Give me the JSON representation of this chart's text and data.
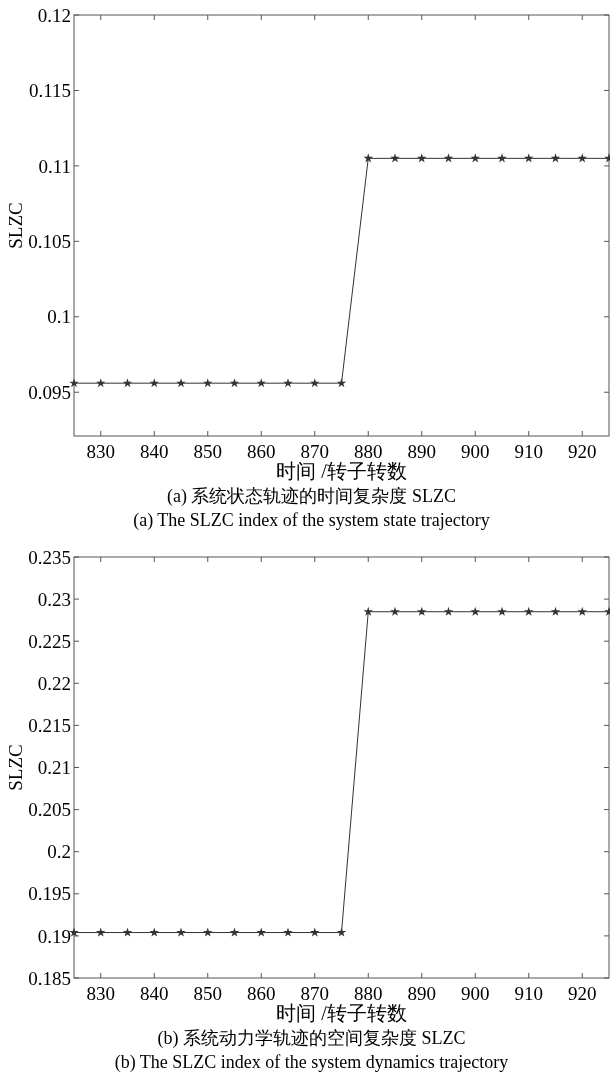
{
  "chart_data": [
    {
      "type": "line",
      "title": "(a) 系统状态轨迹的时间复杂度 SLZC",
      "subtitle": "(a) The SLZC index of the system state trajectory",
      "xlabel": "时间 /转子转数",
      "ylabel": "SLZC",
      "x": [
        825,
        830,
        835,
        840,
        845,
        850,
        855,
        860,
        865,
        870,
        875,
        880,
        885,
        890,
        895,
        900,
        905,
        910,
        915,
        920,
        925
      ],
      "series": [
        {
          "color": "#333333",
          "values": [
            0.0956,
            0.0956,
            0.0956,
            0.0956,
            0.0956,
            0.0956,
            0.0956,
            0.0956,
            0.0956,
            0.0956,
            0.0956,
            0.1105,
            0.1105,
            0.1105,
            0.1105,
            0.1105,
            0.1105,
            0.1105,
            0.1105,
            0.1105,
            0.1105
          ]
        }
      ],
      "xlim": [
        825,
        925
      ],
      "ylim": [
        0.0921,
        0.12
      ],
      "xticks": [
        830,
        840,
        850,
        860,
        870,
        880,
        890,
        900,
        910,
        920
      ],
      "yticks": [
        0.095,
        0.1,
        0.105,
        0.11,
        0.115,
        0.12
      ],
      "marker": "star",
      "line_style": "solid",
      "grid": false
    },
    {
      "type": "line",
      "title": "(b) 系统动力学轨迹的空间复杂度 SLZC",
      "subtitle": "(b) The SLZC index of the system dynamics trajectory",
      "xlabel": "时间 /转子转数",
      "ylabel": "SLZC",
      "x": [
        825,
        830,
        835,
        840,
        845,
        850,
        855,
        860,
        865,
        870,
        875,
        880,
        885,
        890,
        895,
        900,
        905,
        910,
        915,
        920,
        925
      ],
      "series": [
        {
          "color": "#333333",
          "values": [
            0.1904,
            0.1904,
            0.1904,
            0.1904,
            0.1904,
            0.1904,
            0.1904,
            0.1904,
            0.1904,
            0.1904,
            0.1904,
            0.2285,
            0.2285,
            0.2285,
            0.2285,
            0.2285,
            0.2285,
            0.2285,
            0.2285,
            0.2285,
            0.2285
          ]
        }
      ],
      "xlim": [
        825,
        925
      ],
      "ylim": [
        0.185,
        0.235
      ],
      "xticks": [
        830,
        840,
        850,
        860,
        870,
        880,
        890,
        900,
        910,
        920
      ],
      "yticks": [
        0.185,
        0.19,
        0.195,
        0.2,
        0.205,
        0.21,
        0.215,
        0.22,
        0.225,
        0.23,
        0.235
      ],
      "marker": "star",
      "line_style": "solid",
      "grid": false
    }
  ]
}
